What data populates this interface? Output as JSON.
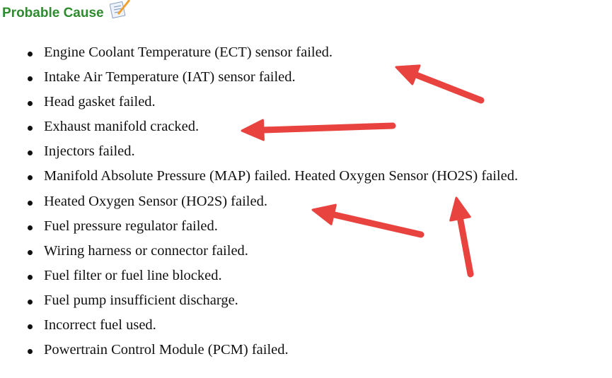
{
  "heading": {
    "title": "Probable Cause",
    "icon": "notepad-pencil-icon"
  },
  "causes": [
    "Engine Coolant Temperature (ECT) sensor failed.",
    "Intake Air Temperature (IAT) sensor failed.",
    "Head gasket failed.",
    "Exhaust manifold cracked.",
    "Injectors failed.",
    "Manifold Absolute Pressure (MAP) failed. Heated Oxygen Sensor (HO2S) failed.",
    "Heated Oxygen Sensor (HO2S) failed.",
    "Fuel pressure regulator failed.",
    "Wiring harness or connector failed.",
    "Fuel filter or fuel line blocked.",
    "Fuel pump insufficient discharge.",
    "Incorrect fuel used.",
    "Powertrain Control Module (PCM) failed."
  ],
  "annotation_color": "#e8433f"
}
